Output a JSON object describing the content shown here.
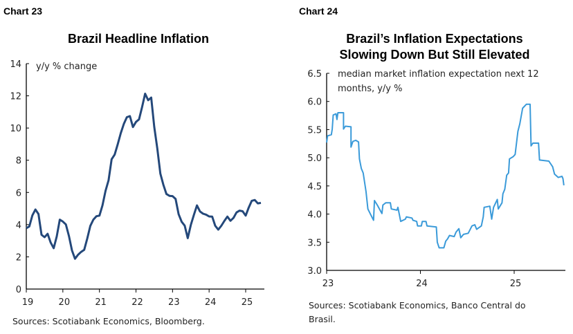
{
  "chart_data": [
    {
      "type": "line",
      "label": "Chart 23",
      "title": "Brazil Headline Inflation",
      "unit_label": "y/y % change",
      "source": "Sources: Scotiabank Economics, Bloomberg.",
      "color": "#24487a",
      "xlim": [
        19,
        25.5
      ],
      "ylim": [
        0,
        14
      ],
      "xticks": [
        "19",
        "20",
        "21",
        "22",
        "23",
        "24",
        "25"
      ],
      "yticks": [
        "0",
        "2",
        "4",
        "6",
        "8",
        "10",
        "12",
        "14"
      ],
      "grid": false,
      "frequency": "monthly",
      "start": "2019-01",
      "values": [
        3.78,
        3.89,
        4.58,
        4.94,
        4.66,
        3.37,
        3.22,
        3.43,
        2.89,
        2.54,
        3.27,
        4.31,
        4.19,
        4.01,
        3.3,
        2.4,
        1.88,
        2.13,
        2.31,
        2.44,
        3.14,
        3.92,
        4.31,
        4.52,
        4.56,
        5.2,
        6.1,
        6.76,
        8.06,
        8.35,
        8.99,
        9.68,
        10.25,
        10.67,
        10.74,
        10.06,
        10.38,
        10.54,
        11.3,
        12.13,
        11.73,
        11.89,
        10.07,
        8.73,
        7.17,
        6.47,
        5.9,
        5.79,
        5.77,
        5.6,
        4.65,
        4.18,
        3.94,
        3.16,
        3.99,
        4.61,
        5.19,
        4.82,
        4.68,
        4.62,
        4.51,
        4.5,
        3.93,
        3.69,
        3.93,
        4.23,
        4.5,
        4.24,
        4.42,
        4.76,
        4.87,
        4.83,
        4.56,
        5.06,
        5.48,
        5.53,
        5.32,
        5.35
      ]
    },
    {
      "type": "line",
      "label": "Chart 24",
      "title": [
        "Brazil’s Inflation Expectations",
        "Slowing Down But Still Elevated"
      ],
      "unit_label": [
        "median market inflation expectation next 12",
        "months, y/y %"
      ],
      "source": [
        "Sources: Scotiabank Economics, Banco Central do",
        "Brasil."
      ],
      "color": "#3a9ad9",
      "xlim": [
        23,
        25.54
      ],
      "ylim": [
        3.0,
        6.5
      ],
      "xticks": [
        "23",
        "24",
        "25"
      ],
      "yticks": [
        "3.0",
        "3.5",
        "4.0",
        "4.5",
        "5.0",
        "5.5",
        "6.0",
        "6.5"
      ],
      "grid": false,
      "x": [
        23.0,
        23.01,
        23.05,
        23.06,
        23.07,
        23.1,
        23.11,
        23.12,
        23.18,
        23.18,
        23.2,
        23.26,
        23.26,
        23.28,
        23.31,
        23.34,
        23.35,
        23.37,
        23.39,
        23.42,
        23.44,
        23.47,
        23.5,
        23.51,
        23.54,
        23.57,
        23.59,
        23.6,
        23.63,
        23.68,
        23.69,
        23.75,
        23.76,
        23.79,
        23.84,
        23.85,
        23.91,
        23.92,
        23.96,
        23.97,
        24.01,
        24.02,
        24.06,
        24.07,
        24.17,
        24.18,
        24.2,
        24.25,
        24.27,
        24.29,
        24.31,
        24.36,
        24.38,
        24.41,
        24.43,
        24.46,
        24.51,
        24.55,
        24.58,
        24.6,
        24.65,
        24.67,
        24.68,
        24.74,
        24.76,
        24.78,
        24.82,
        24.83,
        24.87,
        24.88,
        24.9,
        24.92,
        24.94,
        24.95,
        24.99,
        25.01,
        25.04,
        25.06,
        25.09,
        25.13,
        25.17,
        25.18,
        25.2,
        25.26,
        25.27,
        25.37,
        25.41,
        25.43,
        25.47,
        25.51,
        25.52,
        25.53
      ],
      "y": [
        5.27,
        5.39,
        5.41,
        5.51,
        5.76,
        5.78,
        5.68,
        5.8,
        5.8,
        5.51,
        5.56,
        5.55,
        5.19,
        5.29,
        5.31,
        5.28,
        4.98,
        4.81,
        4.73,
        4.4,
        4.09,
        3.99,
        3.89,
        4.24,
        4.16,
        4.07,
        4.01,
        4.16,
        4.2,
        4.2,
        4.09,
        4.07,
        4.12,
        3.87,
        3.91,
        3.95,
        3.93,
        3.89,
        3.87,
        3.79,
        3.79,
        3.87,
        3.87,
        3.79,
        3.77,
        3.5,
        3.4,
        3.4,
        3.52,
        3.56,
        3.62,
        3.6,
        3.68,
        3.74,
        3.58,
        3.64,
        3.66,
        3.79,
        3.81,
        3.73,
        3.79,
        3.95,
        4.12,
        4.14,
        3.91,
        4.12,
        4.26,
        4.09,
        4.2,
        4.36,
        4.44,
        4.69,
        4.73,
        4.98,
        5.02,
        5.06,
        5.47,
        5.6,
        5.88,
        5.95,
        5.95,
        5.21,
        5.26,
        5.26,
        4.96,
        4.94,
        4.84,
        4.71,
        4.65,
        4.67,
        4.63,
        4.51
      ]
    }
  ]
}
